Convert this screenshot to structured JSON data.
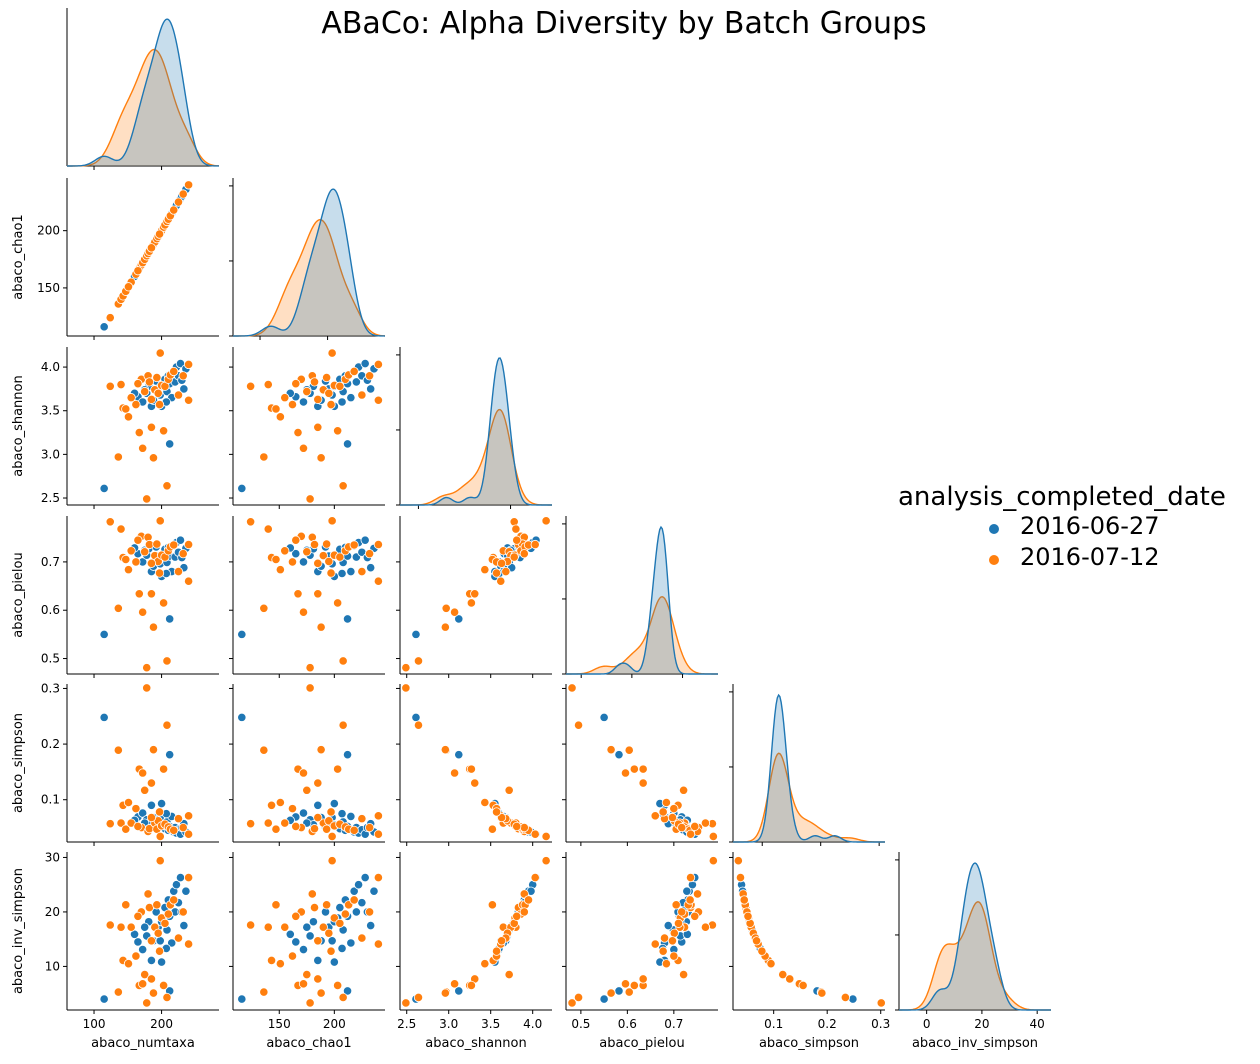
{
  "chart_data": {
    "type": "scatter",
    "kind": "pairplot-lower-triangle",
    "title": "ABaCo: Alpha Diversity by Batch Groups",
    "variables": [
      "abaco_numtaxa",
      "abaco_chao1",
      "abaco_shannon",
      "abaco_pielou",
      "abaco_simpson",
      "abaco_inv_simpson"
    ],
    "axes": {
      "abaco_numtaxa": {
        "label": "abaco_numtaxa",
        "lim": [
          60,
          285
        ],
        "ticks": [
          100,
          200
        ]
      },
      "abaco_chao1": {
        "label": "abaco_chao1",
        "lim": [
          108,
          246
        ],
        "ticks": [
          150,
          200
        ]
      },
      "abaco_shannon": {
        "label": "abaco_shannon",
        "lim": [
          2.42,
          4.23
        ],
        "ticks": [
          2.5,
          3.0,
          3.5,
          4.0
        ],
        "tick_labels": [
          "2.5",
          "3.0",
          "3.5",
          "4.0"
        ]
      },
      "abaco_pielou": {
        "label": "abaco_pielou",
        "lim": [
          0.468,
          0.795
        ],
        "ticks": [
          0.5,
          0.6,
          0.7
        ],
        "tick_labels": [
          "0.5",
          "0.6",
          "0.7"
        ]
      },
      "abaco_simpson": {
        "label": "abaco_simpson",
        "lim": [
          0.024,
          0.308
        ],
        "ticks": [
          0.1,
          0.2,
          0.3
        ],
        "tick_labels": [
          "0.1",
          "0.2",
          "0.3"
        ]
      },
      "abaco_inv_simpson": {
        "label": "abaco_inv_simpson",
        "lim": [
          2.0,
          31.0
        ],
        "ticks": [
          10,
          20,
          30
        ]
      }
    },
    "diagonal_x_axes": {
      "abaco_numtaxa": {
        "lim": [
          60,
          285
        ],
        "ticks": [
          100,
          200
        ]
      },
      "abaco_chao1": {
        "lim": [
          60,
          285
        ],
        "ticks": [
          100,
          200
        ]
      },
      "abaco_shannon": {
        "lim": [
          1.6,
          4.9
        ],
        "ticks": [
          2,
          4
        ]
      },
      "abaco_pielou": {
        "lim": [
          0.34,
          0.94
        ],
        "ticks": [
          0.4,
          0.6,
          0.8
        ],
        "tick_labels": [
          "0.4",
          "0.6",
          "0.8"
        ]
      },
      "abaco_simpson": {
        "lim": [
          -0.1,
          0.42
        ],
        "ticks": [
          0.0,
          0.2,
          0.4
        ],
        "tick_labels": [
          "0.0",
          "0.2",
          "0.4"
        ]
      },
      "abaco_inv_simpson": {
        "lim": [
          -10,
          45
        ],
        "ticks": [
          0,
          20,
          40
        ]
      }
    },
    "legend": {
      "title": "analysis_completed_date",
      "placement": "center-right",
      "entries": [
        {
          "label": "2016-06-27",
          "color": "#1f77b4"
        },
        {
          "label": "2016-07-12",
          "color": "#ff7f0e"
        }
      ]
    },
    "series": [
      {
        "name": "2016-06-27",
        "color": "#1f77b4",
        "points": [
          {
            "numtaxa": 115,
            "chao1": 116,
            "shannon": 2.61,
            "pielou": 0.55,
            "simpson": 0.248,
            "inv_simpson": 4.0
          },
          {
            "numtaxa": 212,
            "chao1": 212,
            "shannon": 3.12,
            "pielou": 0.582,
            "simpson": 0.181,
            "inv_simpson": 5.5
          },
          {
            "numtaxa": 165,
            "chao1": 165,
            "shannon": 3.66,
            "pielou": 0.717,
            "simpson": 0.069,
            "inv_simpson": 14.5
          },
          {
            "numtaxa": 172,
            "chao1": 172,
            "shannon": 3.6,
            "pielou": 0.7,
            "simpson": 0.076,
            "inv_simpson": 13.1
          },
          {
            "numtaxa": 178,
            "chao1": 178,
            "shannon": 3.7,
            "pielou": 0.714,
            "simpson": 0.064,
            "inv_simpson": 15.6
          },
          {
            "numtaxa": 181,
            "chao1": 181,
            "shannon": 3.78,
            "pielou": 0.727,
            "simpson": 0.055,
            "inv_simpson": 18.2
          },
          {
            "numtaxa": 185,
            "chao1": 185,
            "shannon": 3.55,
            "pielou": 0.68,
            "simpson": 0.09,
            "inv_simpson": 11.1
          },
          {
            "numtaxa": 188,
            "chao1": 188,
            "shannon": 3.62,
            "pielou": 0.691,
            "simpson": 0.068,
            "inv_simpson": 14.7
          },
          {
            "numtaxa": 192,
            "chao1": 192,
            "shannon": 3.84,
            "pielou": 0.731,
            "simpson": 0.05,
            "inv_simpson": 20.0
          },
          {
            "numtaxa": 195,
            "chao1": 195,
            "shannon": 3.75,
            "pielou": 0.712,
            "simpson": 0.058,
            "inv_simpson": 17.2
          },
          {
            "numtaxa": 198,
            "chao1": 198,
            "shannon": 3.68,
            "pielou": 0.696,
            "simpson": 0.068,
            "inv_simpson": 14.7
          },
          {
            "numtaxa": 200,
            "chao1": 200,
            "shannon": 3.55,
            "pielou": 0.67,
            "simpson": 0.093,
            "inv_simpson": 10.8
          },
          {
            "numtaxa": 203,
            "chao1": 203,
            "shannon": 3.8,
            "pielou": 0.715,
            "simpson": 0.053,
            "inv_simpson": 18.9
          },
          {
            "numtaxa": 205,
            "chao1": 205,
            "shannon": 3.86,
            "pielou": 0.726,
            "simpson": 0.048,
            "inv_simpson": 20.8
          },
          {
            "numtaxa": 208,
            "chao1": 208,
            "shannon": 3.72,
            "pielou": 0.699,
            "simpson": 0.06,
            "inv_simpson": 16.7
          },
          {
            "numtaxa": 210,
            "chao1": 210,
            "shannon": 3.9,
            "pielou": 0.73,
            "simpson": 0.045,
            "inv_simpson": 22.2
          },
          {
            "numtaxa": 212,
            "chao1": 212,
            "shannon": 3.81,
            "pielou": 0.712,
            "simpson": 0.052,
            "inv_simpson": 19.2
          },
          {
            "numtaxa": 215,
            "chao1": 215,
            "shannon": 3.65,
            "pielou": 0.68,
            "simpson": 0.07,
            "inv_simpson": 14.3
          },
          {
            "numtaxa": 218,
            "chao1": 218,
            "shannon": 3.95,
            "pielou": 0.733,
            "simpson": 0.042,
            "inv_simpson": 23.8
          },
          {
            "numtaxa": 220,
            "chao1": 220,
            "shannon": 3.83,
            "pielou": 0.71,
            "simpson": 0.05,
            "inv_simpson": 20.0
          },
          {
            "numtaxa": 222,
            "chao1": 222,
            "shannon": 4.0,
            "pielou": 0.74,
            "simpson": 0.04,
            "inv_simpson": 25.0
          },
          {
            "numtaxa": 225,
            "chao1": 225,
            "shannon": 3.9,
            "pielou": 0.72,
            "simpson": 0.046,
            "inv_simpson": 21.7
          },
          {
            "numtaxa": 228,
            "chao1": 228,
            "shannon": 4.04,
            "pielou": 0.745,
            "simpson": 0.038,
            "inv_simpson": 26.3
          },
          {
            "numtaxa": 230,
            "chao1": 230,
            "shannon": 3.85,
            "pielou": 0.709,
            "simpson": 0.05,
            "inv_simpson": 20.0
          },
          {
            "numtaxa": 233,
            "chao1": 233,
            "shannon": 3.75,
            "pielou": 0.688,
            "simpson": 0.057,
            "inv_simpson": 17.5
          },
          {
            "numtaxa": 236,
            "chao1": 236,
            "shannon": 3.98,
            "pielou": 0.728,
            "simpson": 0.042,
            "inv_simpson": 23.8
          },
          {
            "numtaxa": 160,
            "chao1": 160,
            "shannon": 3.7,
            "pielou": 0.729,
            "simpson": 0.063,
            "inv_simpson": 15.9
          },
          {
            "numtaxa": 175,
            "chao1": 175,
            "shannon": 3.74,
            "pielou": 0.724,
            "simpson": 0.058,
            "inv_simpson": 17.2
          },
          {
            "numtaxa": 200,
            "chao1": 200,
            "shannon": 3.78,
            "pielou": 0.713,
            "simpson": 0.055,
            "inv_simpson": 18.2
          },
          {
            "numtaxa": 207,
            "chao1": 207,
            "shannon": 3.6,
            "pielou": 0.676,
            "simpson": 0.075,
            "inv_simpson": 13.3
          }
        ]
      },
      {
        "name": "2016-07-12",
        "color": "#ff7f0e",
        "points": [
          {
            "numtaxa": 124,
            "chao1": 124,
            "shannon": 3.78,
            "pielou": 0.783,
            "simpson": 0.057,
            "inv_simpson": 17.6
          },
          {
            "numtaxa": 136,
            "chao1": 136,
            "shannon": 2.97,
            "pielou": 0.604,
            "simpson": 0.189,
            "inv_simpson": 5.3
          },
          {
            "numtaxa": 140,
            "chao1": 140,
            "shannon": 3.8,
            "pielou": 0.768,
            "simpson": 0.058,
            "inv_simpson": 17.2
          },
          {
            "numtaxa": 143,
            "chao1": 143,
            "shannon": 3.53,
            "pielou": 0.709,
            "simpson": 0.09,
            "inv_simpson": 11.1
          },
          {
            "numtaxa": 147,
            "chao1": 147,
            "shannon": 3.52,
            "pielou": 0.705,
            "simpson": 0.047,
            "inv_simpson": 21.3
          },
          {
            "numtaxa": 155,
            "chao1": 155,
            "shannon": 3.65,
            "pielou": 0.723,
            "simpson": 0.058,
            "inv_simpson": 17.2
          },
          {
            "numtaxa": 162,
            "chao1": 162,
            "shannon": 3.57,
            "pielou": 0.7,
            "simpson": 0.084,
            "inv_simpson": 11.9
          },
          {
            "numtaxa": 167,
            "chao1": 167,
            "shannon": 3.25,
            "pielou": 0.634,
            "simpson": 0.155,
            "inv_simpson": 6.5
          },
          {
            "numtaxa": 170,
            "chao1": 170,
            "shannon": 3.86,
            "pielou": 0.753,
            "simpson": 0.05,
            "inv_simpson": 20.0
          },
          {
            "numtaxa": 172,
            "chao1": 172,
            "shannon": 3.07,
            "pielou": 0.596,
            "simpson": 0.148,
            "inv_simpson": 6.8
          },
          {
            "numtaxa": 175,
            "chao1": 175,
            "shannon": 3.72,
            "pielou": 0.721,
            "simpson": 0.117,
            "inv_simpson": 8.5
          },
          {
            "numtaxa": 178,
            "chao1": 178,
            "shannon": 2.49,
            "pielou": 0.481,
            "simpson": 0.301,
            "inv_simpson": 3.3
          },
          {
            "numtaxa": 180,
            "chao1": 180,
            "shannon": 3.9,
            "pielou": 0.751,
            "simpson": 0.043,
            "inv_simpson": 23.3
          },
          {
            "numtaxa": 182,
            "chao1": 182,
            "shannon": 3.83,
            "pielou": 0.736,
            "simpson": 0.048,
            "inv_simpson": 20.8
          },
          {
            "numtaxa": 185,
            "chao1": 185,
            "shannon": 3.31,
            "pielou": 0.634,
            "simpson": 0.13,
            "inv_simpson": 7.7
          },
          {
            "numtaxa": 188,
            "chao1": 188,
            "shannon": 2.96,
            "pielou": 0.565,
            "simpson": 0.19,
            "inv_simpson": 5.1
          },
          {
            "numtaxa": 190,
            "chao1": 190,
            "shannon": 3.74,
            "pielou": 0.713,
            "simpson": 0.058,
            "inv_simpson": 17.2
          },
          {
            "numtaxa": 193,
            "chao1": 193,
            "shannon": 3.88,
            "pielou": 0.737,
            "simpson": 0.047,
            "inv_simpson": 21.3
          },
          {
            "numtaxa": 195,
            "chao1": 195,
            "shannon": 3.7,
            "pielou": 0.701,
            "simpson": 0.062,
            "inv_simpson": 16.1
          },
          {
            "numtaxa": 198,
            "chao1": 198,
            "shannon": 4.16,
            "pielou": 0.785,
            "simpson": 0.034,
            "inv_simpson": 29.4
          },
          {
            "numtaxa": 200,
            "chao1": 200,
            "shannon": 3.79,
            "pielou": 0.714,
            "simpson": 0.053,
            "inv_simpson": 18.9
          },
          {
            "numtaxa": 203,
            "chao1": 203,
            "shannon": 3.27,
            "pielou": 0.615,
            "simpson": 0.155,
            "inv_simpson": 6.5
          },
          {
            "numtaxa": 205,
            "chao1": 205,
            "shannon": 3.78,
            "pielou": 0.71,
            "simpson": 0.056,
            "inv_simpson": 17.9
          },
          {
            "numtaxa": 208,
            "chao1": 208,
            "shannon": 2.64,
            "pielou": 0.495,
            "simpson": 0.234,
            "inv_simpson": 4.3
          },
          {
            "numtaxa": 210,
            "chao1": 210,
            "shannon": 3.86,
            "pielou": 0.723,
            "simpson": 0.051,
            "inv_simpson": 19.6
          },
          {
            "numtaxa": 213,
            "chao1": 213,
            "shannon": 3.91,
            "pielou": 0.731,
            "simpson": 0.047,
            "inv_simpson": 21.3
          },
          {
            "numtaxa": 218,
            "chao1": 218,
            "shannon": 3.95,
            "pielou": 0.735,
            "simpson": 0.045,
            "inv_simpson": 22.2
          },
          {
            "numtaxa": 225,
            "chao1": 225,
            "shannon": 3.68,
            "pielou": 0.68,
            "simpson": 0.066,
            "inv_simpson": 15.2
          },
          {
            "numtaxa": 232,
            "chao1": 232,
            "shannon": 3.9,
            "pielou": 0.717,
            "simpson": 0.05,
            "inv_simpson": 20.0
          },
          {
            "numtaxa": 240,
            "chao1": 240,
            "shannon": 4.03,
            "pielou": 0.736,
            "simpson": 0.038,
            "inv_simpson": 26.3
          },
          {
            "numtaxa": 240,
            "chao1": 240,
            "shannon": 3.62,
            "pielou": 0.66,
            "simpson": 0.071,
            "inv_simpson": 14.1
          },
          {
            "numtaxa": 151,
            "chao1": 151,
            "shannon": 3.43,
            "pielou": 0.684,
            "simpson": 0.095,
            "inv_simpson": 10.5
          },
          {
            "numtaxa": 165,
            "chao1": 165,
            "shannon": 3.81,
            "pielou": 0.745,
            "simpson": 0.052,
            "inv_simpson": 19.2
          },
          {
            "numtaxa": 185,
            "chao1": 185,
            "shannon": 3.63,
            "pielou": 0.697,
            "simpson": 0.068,
            "inv_simpson": 14.7
          },
          {
            "numtaxa": 197,
            "chao1": 197,
            "shannon": 3.57,
            "pielou": 0.677,
            "simpson": 0.078,
            "inv_simpson": 12.8
          }
        ]
      }
    ]
  }
}
